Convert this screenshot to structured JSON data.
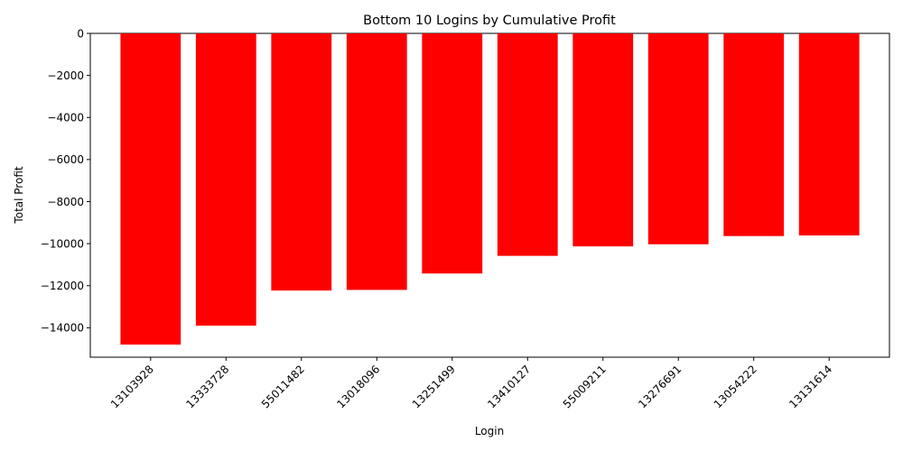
{
  "chart_data": {
    "type": "bar",
    "title": "Bottom 10 Logins by Cumulative Profit",
    "xlabel": "Login",
    "ylabel": "Total Profit",
    "categories": [
      "13103928",
      "13333728",
      "55011482",
      "13018096",
      "13251499",
      "13410127",
      "55009211",
      "13276691",
      "13054222",
      "13131614"
    ],
    "values": [
      -14800,
      -13900,
      -12230,
      -12200,
      -11420,
      -10580,
      -10130,
      -10030,
      -9640,
      -9610
    ],
    "ylim": [
      -15400,
      0
    ],
    "yticks": [
      0,
      -2000,
      -4000,
      -6000,
      -8000,
      -10000,
      -12000,
      -14000
    ],
    "ytick_labels": [
      "0",
      "−2000",
      "−4000",
      "−6000",
      "−8000",
      "−10000",
      "−12000",
      "−14000"
    ],
    "bar_color": "#ff0000",
    "grid": false,
    "legend": "none"
  }
}
